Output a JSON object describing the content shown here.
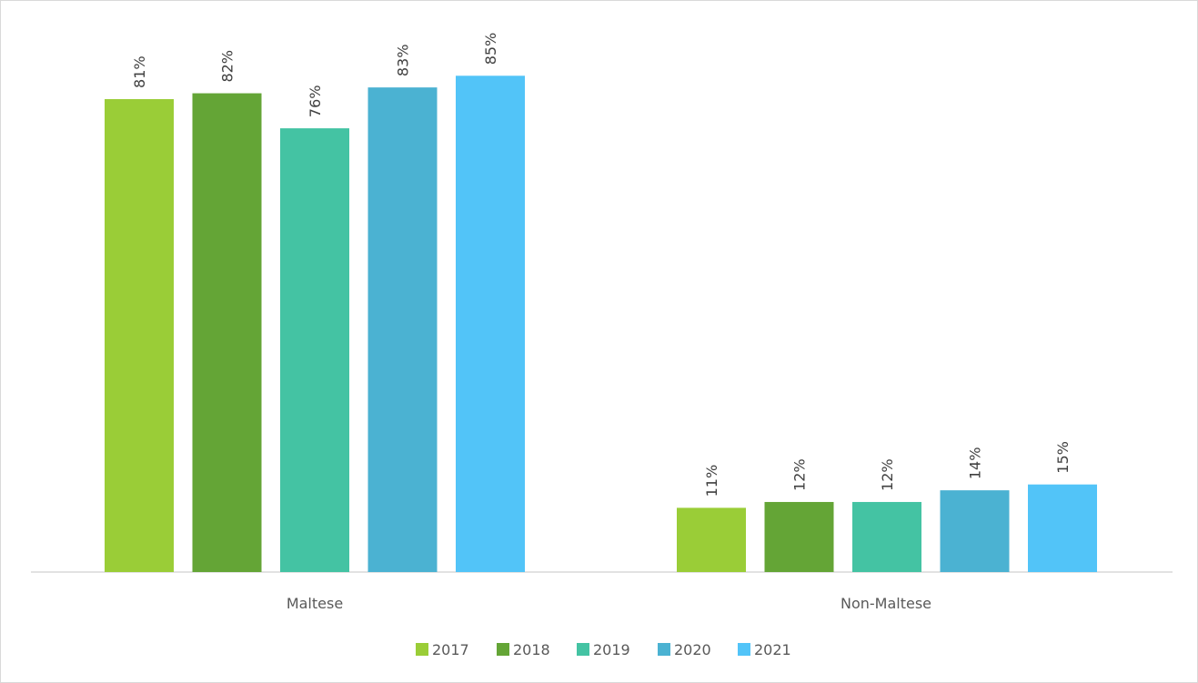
{
  "chart_data": {
    "type": "bar",
    "categories": [
      "Maltese",
      "Non-Maltese"
    ],
    "series": [
      {
        "name": "2017",
        "color": "#9ACD37",
        "values": [
          81,
          11
        ],
        "labels": [
          "81%",
          "11%"
        ]
      },
      {
        "name": "2018",
        "color": "#64A536",
        "values": [
          82,
          12
        ],
        "labels": [
          "82%",
          "12%"
        ]
      },
      {
        "name": "2019",
        "color": "#44C3A3",
        "values": [
          76,
          12
        ],
        "labels": [
          "76%",
          "12%"
        ]
      },
      {
        "name": "2020",
        "color": "#4BB2D2",
        "values": [
          83,
          14
        ],
        "labels": [
          "83%",
          "14%"
        ]
      },
      {
        "name": "2021",
        "color": "#52C4F8",
        "values": [
          85,
          15
        ],
        "labels": [
          "85%",
          "15%"
        ]
      }
    ],
    "title": "",
    "xlabel": "",
    "ylabel": "",
    "ylim": [
      0,
      100
    ],
    "grid": false,
    "legend_position": "bottom"
  }
}
